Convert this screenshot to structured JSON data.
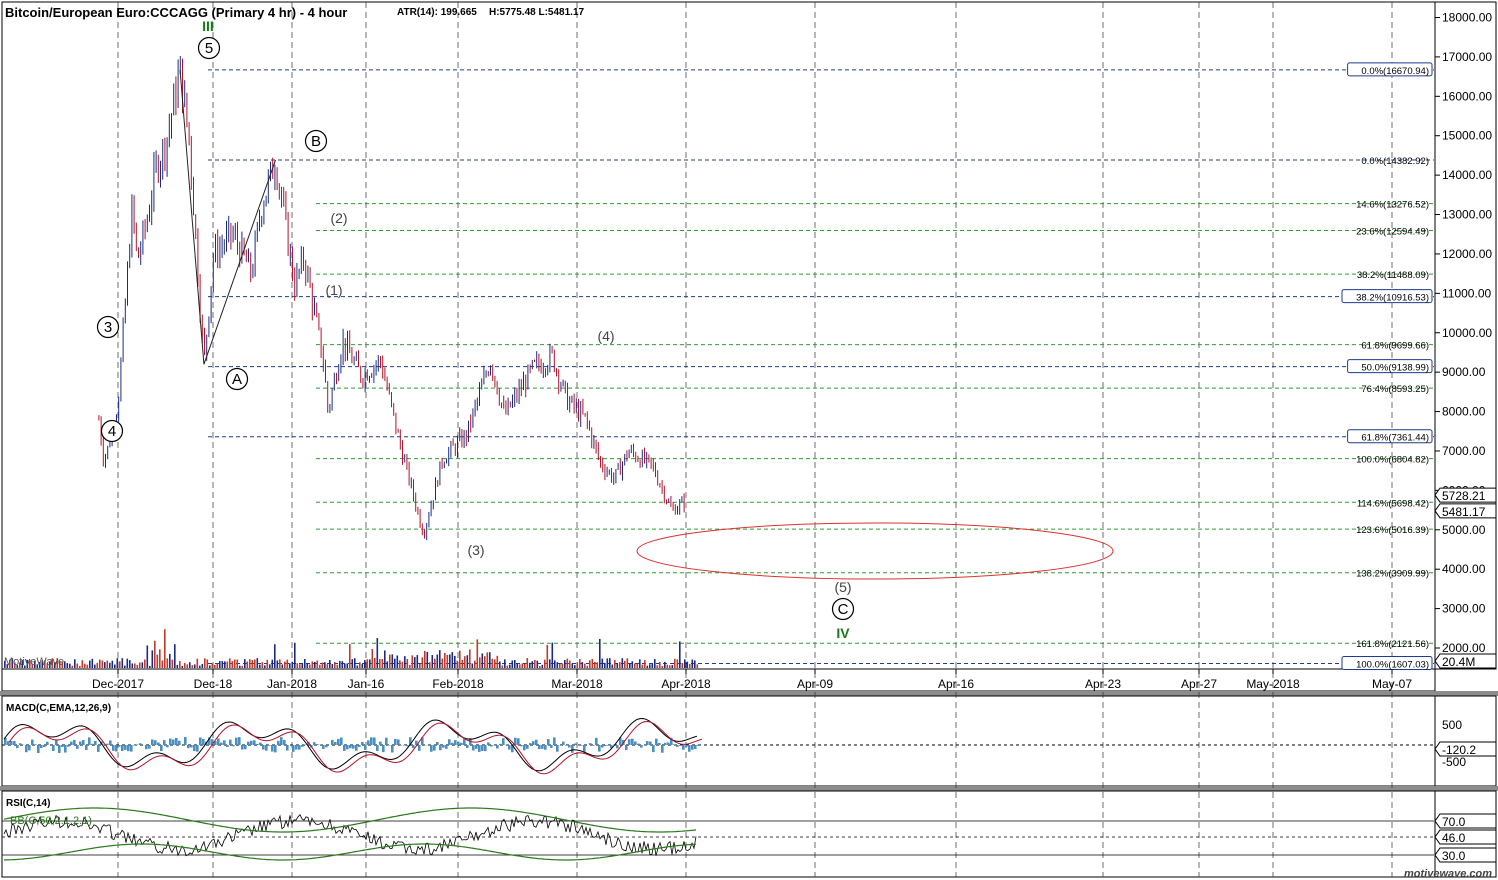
{
  "header": {
    "title": "Bitcoin/European Euro:CCCAGG (Primary 4 hr) - 4 hour",
    "atr": "ATR(14): 199.665",
    "hl": "H:5775.48  L:5481.17"
  },
  "watermark": "MotiveWave",
  "footer_brand": "motivewave.com",
  "colors": {
    "blue_fib": "#1f3d8a",
    "green_fib": "#2e9e2e",
    "candle_up": "#1b2c80",
    "candle_down": "#b0132a",
    "target_ellipse": "#e03030",
    "wave_green": "#1a7a1a",
    "macd_hist": "#4a8fc0",
    "rsi_band": "#2a7a1a"
  },
  "price_axis": {
    "labels": [
      "18000.00",
      "17000.00",
      "16000.00",
      "15000.00",
      "14000.00",
      "13000.00",
      "12000.00",
      "11000.00",
      "10000.00",
      "9000.00",
      "8000.00",
      "7000.00",
      "6000.00",
      "5000.00",
      "4000.00",
      "3000.00",
      "2000.00"
    ],
    "last_price": "5728.21",
    "low_price": "5481.17",
    "volume": "20.4M"
  },
  "time_axis": [
    "Dec-2017",
    "Dec-18",
    "Jan-2018",
    "Jan-16",
    "Feb-2018",
    "Mar-2018",
    "Apr-2018",
    "Apr-09",
    "Apr-16",
    "Apr-23",
    "Apr-27",
    "May-2018",
    "May-07"
  ],
  "fib_levels": [
    {
      "label": "0.0%(16670.94)",
      "price": 16670.94,
      "color": "blue",
      "boxed": true
    },
    {
      "label": "0.0%(14382.92)",
      "price": 14382.92,
      "color": "blue",
      "boxed": false
    },
    {
      "label": "14.6%(13276.52)",
      "price": 13276.52,
      "color": "green",
      "boxed": false
    },
    {
      "label": "23.6%(12594.49)",
      "price": 12594.49,
      "color": "green",
      "boxed": false
    },
    {
      "label": "38.2%(11488.09)",
      "price": 11488.09,
      "color": "green",
      "boxed": false
    },
    {
      "label": "38.2%(10916.53)",
      "price": 10916.53,
      "color": "blue",
      "boxed": true
    },
    {
      "label": "61.8%(9699.66)",
      "price": 9699.66,
      "color": "green",
      "boxed": false
    },
    {
      "label": "50.0%(9138.99)",
      "price": 9138.99,
      "color": "blue",
      "boxed": true
    },
    {
      "label": "76.4%(8593.25)",
      "price": 8593.25,
      "color": "green",
      "boxed": false
    },
    {
      "label": "61.8%(7361.44)",
      "price": 7361.44,
      "color": "blue",
      "boxed": true
    },
    {
      "label": "100.0%(6804.82)",
      "price": 6804.82,
      "color": "green",
      "boxed": false
    },
    {
      "label": "114.6%(5698.42)",
      "price": 5698.42,
      "color": "green",
      "boxed": false
    },
    {
      "label": "123.6%(5016.39)",
      "price": 5016.39,
      "color": "green",
      "boxed": false
    },
    {
      "label": "138.2%(3909.99)",
      "price": 3909.99,
      "color": "green",
      "boxed": false
    },
    {
      "label": "161.8%(2121.56)",
      "price": 2121.56,
      "color": "green",
      "boxed": false
    },
    {
      "label": "100.0%(1607.03)",
      "price": 1607.03,
      "color": "blue",
      "boxed": true
    }
  ],
  "wave_labels": [
    {
      "text": "III",
      "circled": false,
      "green": true
    },
    {
      "text": "5",
      "circled": true,
      "green": false
    },
    {
      "text": "3",
      "circled": true,
      "green": false
    },
    {
      "text": "4",
      "circled": true,
      "green": false
    },
    {
      "text": "A",
      "circled": true,
      "green": false
    },
    {
      "text": "B",
      "circled": true,
      "green": false
    },
    {
      "text": "(2)",
      "circled": false,
      "green": false
    },
    {
      "text": "(1)",
      "circled": false,
      "green": false
    },
    {
      "text": "(3)",
      "circled": false,
      "green": false
    },
    {
      "text": "(4)",
      "circled": false,
      "green": false
    },
    {
      "text": "(5)",
      "circled": false,
      "green": false
    },
    {
      "text": "C",
      "circled": true,
      "green": false
    },
    {
      "text": "IV",
      "circled": false,
      "green": true
    }
  ],
  "macd": {
    "title": "MACD(C,EMA,12,26,9)",
    "axis_labels": [
      "500",
      "-500"
    ],
    "value": "-120.2"
  },
  "rsi": {
    "title": "RSI(C,14)",
    "bb_label": "BB(C,50,2.1,2.1)",
    "axis_labels": [
      "70.0",
      "46.0",
      "30.0"
    ]
  },
  "chart_data": {
    "type": "candlestick",
    "title": "Bitcoin/European Euro:CCCAGG (Primary 4 hr) - 4 hour",
    "ylim": [
      1500,
      18500
    ],
    "price_path": [
      [
        "Nov-30-2017",
        7800
      ],
      [
        "Dec-01-2017",
        6800
      ],
      [
        "Dec-02-2017",
        7100
      ],
      [
        "Dec-04-2017",
        8200
      ],
      [
        "Dec-07-2017",
        13200
      ],
      [
        "Dec-08-2017",
        11800
      ],
      [
        "Dec-10-2017",
        12800
      ],
      [
        "Dec-12-2017",
        14200
      ],
      [
        "Dec-14-2017",
        14800
      ],
      [
        "Dec-17-2017",
        16670.94
      ],
      [
        "Dec-19-2017",
        14800
      ],
      [
        "Dec-22-2017",
        9200
      ],
      [
        "Dec-24-2017",
        12000
      ],
      [
        "Dec-28-2017",
        12500
      ],
      [
        "Jan-01-2018",
        11500
      ],
      [
        "Jan-03-2018",
        13200
      ],
      [
        "Jan-06-2018",
        14382.92
      ],
      [
        "Jan-08-2018",
        12800
      ],
      [
        "Jan-10-2018",
        11200
      ],
      [
        "Jan-12-2018",
        11900
      ],
      [
        "Jan-16-2018",
        9300
      ],
      [
        "Jan-17-2018",
        8000
      ],
      [
        "Jan-20-2018",
        9800
      ],
      [
        "Jan-24-2018",
        8900
      ],
      [
        "Jan-28-2018",
        9300
      ],
      [
        "Feb-01-2018",
        7200
      ],
      [
        "Feb-06-2018",
        4900
      ],
      [
        "Feb-10-2018",
        6800
      ],
      [
        "Feb-15-2018",
        7400
      ],
      [
        "Feb-20-2018",
        9300
      ],
      [
        "Feb-23-2018",
        7900
      ],
      [
        "Mar-01-2018",
        9100
      ],
      [
        "Mar-05-2018",
        9400
      ],
      [
        "Mar-08-2018",
        8300
      ],
      [
        "Mar-12-2018",
        7800
      ],
      [
        "Mar-15-2018",
        6700
      ],
      [
        "Mar-18-2018",
        6300
      ],
      [
        "Mar-21-2018",
        7000
      ],
      [
        "Mar-26-2018",
        6600
      ],
      [
        "Mar-30-2018",
        5500
      ],
      [
        "Apr-02-2018",
        5728.21
      ]
    ],
    "target_zone": {
      "price_low": 3909.99,
      "price_high": 5016.39,
      "from": "Mar-28-2018",
      "to": "May-05-2018"
    },
    "last": 5728.21,
    "low": 5481.17
  }
}
